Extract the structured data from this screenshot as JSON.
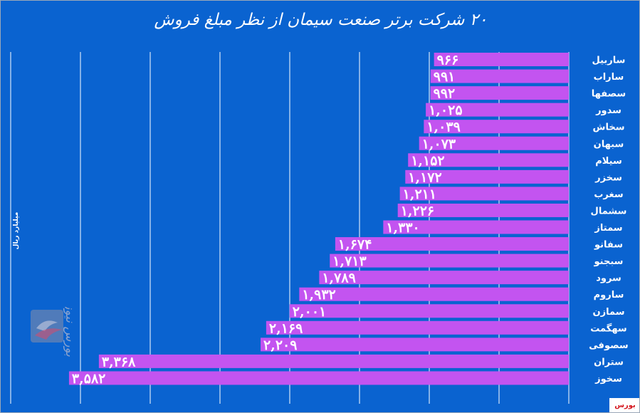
{
  "title": "۲۰ شرکت برتر صنعت سیمان از نظر مبلغ فروش",
  "source_label": "بورس نیوز",
  "logo_text": "بورس نیوز",
  "colors": {
    "background": "#0a63d0",
    "bar": "#c354f0",
    "grid": "#ffffff",
    "source_text": "#d4181f"
  },
  "chart_data": {
    "type": "bar",
    "orientation": "horizontal",
    "title": "۲۰ شرکت برتر صنعت سیمان از نظر مبلغ فروش",
    "ylabel": "میلیارد ریال",
    "xlim": [
      0,
      4000
    ],
    "grid": true,
    "categories": [
      "ساربیل",
      "ساراب",
      "سصفها",
      "سدور",
      "سخاش",
      "سبهان",
      "سیلام",
      "سخزر",
      "سغرب",
      "سشمال",
      "سمتاز",
      "سفانو",
      "سبجنو",
      "سرود",
      "ساروم",
      "سمازن",
      "سهگمت",
      "سصوفی",
      "ستران",
      "سخوز"
    ],
    "values": [
      966,
      991,
      992,
      1025,
      1039,
      1073,
      1152,
      1172,
      1211,
      1226,
      1330,
      1674,
      1713,
      1789,
      1932,
      2001,
      2169,
      2209,
      3368,
      3582
    ],
    "value_labels": [
      "۹۶۶",
      "۹۹۱",
      "۹۹۲",
      "۱,۰۲۵",
      "۱,۰۳۹",
      "۱,۰۷۳",
      "۱,۱۵۲",
      "۱,۱۷۲",
      "۱,۲۱۱",
      "۱,۲۲۶",
      "۱,۳۳۰",
      "۱,۶۷۴",
      "۱,۷۱۳",
      "۱,۷۸۹",
      "۱,۹۳۲",
      "۲,۰۰۱",
      "۲,۱۶۹",
      "۲,۲۰۹",
      "۳,۳۶۸",
      "۳,۵۸۲"
    ]
  }
}
